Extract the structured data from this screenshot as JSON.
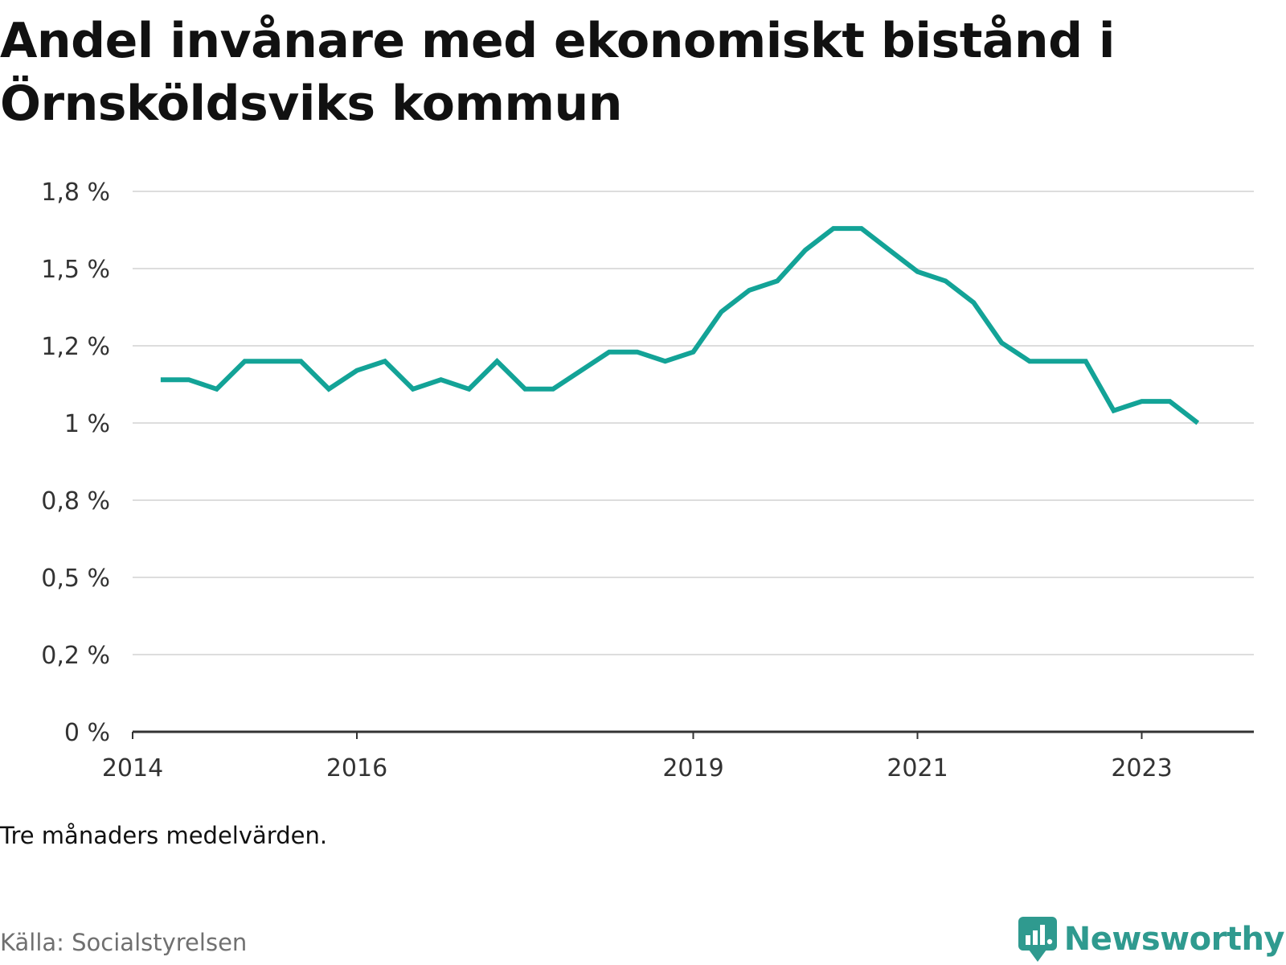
{
  "title": "Andel invånare med ekonomiskt bistånd i Örnsköldsviks kommun",
  "note": "Tre månaders medelvärden.",
  "source": "Källa: Socialstyrelsen",
  "brand": {
    "name": "Newsworthy",
    "icon": "newsworthy-logo-icon"
  },
  "colors": {
    "line": "#13a397",
    "grid": "#dddddd",
    "axis": "#333333",
    "brand": "#2f9a8f"
  },
  "chart_data": {
    "type": "line",
    "title": "Andel invånare med ekonomiskt bistånd i Örnsköldsviks kommun",
    "xlabel": "",
    "ylabel": "",
    "y_ticks": [
      {
        "value": 0,
        "label": "0 %"
      },
      {
        "value": 0.25,
        "label": "0,2 %"
      },
      {
        "value": 0.5,
        "label": "0,5 %"
      },
      {
        "value": 0.75,
        "label": "0,8 %"
      },
      {
        "value": 1.0,
        "label": "1 %"
      },
      {
        "value": 1.25,
        "label": "1,2 %"
      },
      {
        "value": 1.5,
        "label": "1,5 %"
      },
      {
        "value": 1.75,
        "label": "1,8 %"
      }
    ],
    "x_ticks": [
      {
        "value": "2014-01",
        "label": "2014"
      },
      {
        "value": "2016-01",
        "label": "2016"
      },
      {
        "value": "2019-01",
        "label": "2019"
      },
      {
        "value": "2021-01",
        "label": "2021"
      },
      {
        "value": "2023-01",
        "label": "2023"
      }
    ],
    "xlim": [
      "2014-01",
      "2024-01"
    ],
    "ylim": [
      0,
      1.75
    ],
    "grid": true,
    "legend": "none",
    "series": [
      {
        "x": [
          "2014-04",
          "2014-07",
          "2014-10",
          "2015-01",
          "2015-04",
          "2015-07",
          "2015-10",
          "2016-01",
          "2016-04",
          "2016-07",
          "2016-10",
          "2017-01",
          "2017-04",
          "2017-07",
          "2017-10",
          "2018-01",
          "2018-04",
          "2018-07",
          "2018-10",
          "2019-01",
          "2019-04",
          "2019-07",
          "2019-10",
          "2020-01",
          "2020-04",
          "2020-07",
          "2020-10",
          "2021-01",
          "2021-04",
          "2021-07",
          "2021-10",
          "2022-01",
          "2022-04",
          "2022-07",
          "2022-10",
          "2023-01",
          "2023-04",
          "2023-07"
        ],
        "values": [
          1.14,
          1.14,
          1.11,
          1.2,
          1.2,
          1.2,
          1.11,
          1.17,
          1.2,
          1.11,
          1.14,
          1.11,
          1.2,
          1.11,
          1.11,
          1.17,
          1.23,
          1.23,
          1.2,
          1.23,
          1.36,
          1.43,
          1.46,
          1.56,
          1.63,
          1.63,
          1.56,
          1.49,
          1.46,
          1.39,
          1.26,
          1.2,
          1.2,
          1.2,
          1.04,
          1.07,
          1.07,
          1.0
        ]
      }
    ]
  }
}
